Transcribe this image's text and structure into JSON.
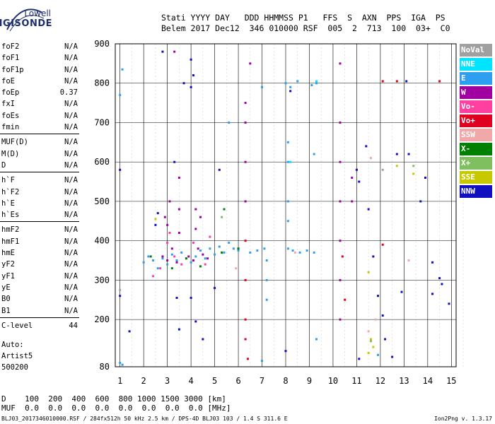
{
  "logo": {
    "line1": "Lowell",
    "line2": "DIGISONDE"
  },
  "header": {
    "line1": "Stati YYYY DAY   DDD HHMMSS P1   FFS  S  AXN  PPS  IGA  PS",
    "line2": "Belem 2017 Dec12  346 010000 RSF  005  2  713  100  03+  C0"
  },
  "params": [
    {
      "name": "foF2",
      "value": "N/A"
    },
    {
      "name": "foF1",
      "value": "N/A"
    },
    {
      "name": "foF1p",
      "value": "N/A"
    },
    {
      "name": "foE",
      "value": "N/A"
    },
    {
      "name": "foEp",
      "value": "0.37"
    },
    {
      "name": "fxI",
      "value": "N/A"
    },
    {
      "name": "foEs",
      "value": "N/A"
    },
    {
      "name": "fmin",
      "value": "N/A"
    },
    {
      "name": "MUF(D)",
      "value": "N/A",
      "sep_before": true
    },
    {
      "name": "M(D)",
      "value": "N/A"
    },
    {
      "name": "D",
      "value": "N/A"
    },
    {
      "name": "h`F",
      "value": "N/A",
      "sep_before": true
    },
    {
      "name": "h`F2",
      "value": "N/A"
    },
    {
      "name": "h`E",
      "value": "N/A"
    },
    {
      "name": "h`Es",
      "value": "N/A"
    },
    {
      "name": "hmF2",
      "value": "N/A",
      "sep_before": true
    },
    {
      "name": "hmF1",
      "value": "N/A"
    },
    {
      "name": "hmE",
      "value": "N/A"
    },
    {
      "name": "yF2",
      "value": "N/A"
    },
    {
      "name": "yF1",
      "value": "N/A"
    },
    {
      "name": "yE",
      "value": "N/A"
    },
    {
      "name": "B0",
      "value": "N/A"
    },
    {
      "name": "B1",
      "value": "N/A"
    },
    {
      "name": "C-level",
      "value": "44",
      "sep_before": true
    }
  ],
  "auto": {
    "line1": "Auto:",
    "line2": "Artist5",
    "line3": "500200"
  },
  "scale": {
    "d_line": "D    100  200  400  600  800 1000 1500 3000 [km]",
    "muf_line": "MUF  0.0  0.0  0.0  0.0  0.0  0.0  0.0  0.0 [MHz]"
  },
  "footer": {
    "left": "BLJ03_2017346010000.RSF / 284fx512h 50 kHz 2.5 km / DPS-4D BLJ03 103 / 1.4 S 311.6 E",
    "right": "Ion2Png v. 1.3.17"
  },
  "legend": [
    {
      "label": "NoVal",
      "color": "#a0a0a0"
    },
    {
      "label": "NNE",
      "color": "#00e5ff"
    },
    {
      "label": "E",
      "color": "#2e9ef0"
    },
    {
      "label": "W",
      "color": "#a000a0"
    },
    {
      "label": "Vo-",
      "color": "#ff40a0"
    },
    {
      "label": "Vo+",
      "color": "#e00020"
    },
    {
      "label": "SSW",
      "color": "#f0a8a8"
    },
    {
      "label": "X-",
      "color": "#008000"
    },
    {
      "label": "X+",
      "color": "#7fbf5f"
    },
    {
      "label": "SSE",
      "color": "#c8c800"
    },
    {
      "label": "NNW",
      "color": "#1010c0"
    }
  ],
  "chart_data": {
    "type": "scatter",
    "xlim": [
      0.8,
      15.2
    ],
    "ylim": [
      80,
      900
    ],
    "x_ticks": [
      1,
      2,
      3,
      4,
      5,
      6,
      7,
      8,
      9,
      10,
      11,
      12,
      13,
      14,
      15
    ],
    "y_ticks": [
      80,
      200,
      300,
      400,
      500,
      600,
      700,
      800,
      900
    ],
    "grid": true,
    "series": [
      {
        "color": "#2e9ef0",
        "points": [
          [
            2.0,
            345
          ],
          [
            2.2,
            360
          ],
          [
            2.4,
            350
          ],
          [
            2.6,
            330
          ],
          [
            2.8,
            355
          ],
          [
            3.0,
            340
          ],
          [
            3.2,
            365
          ],
          [
            3.4,
            350
          ],
          [
            3.6,
            370
          ],
          [
            3.8,
            355
          ],
          [
            4.0,
            345
          ],
          [
            4.2,
            360
          ],
          [
            4.4,
            375
          ],
          [
            4.6,
            355
          ],
          [
            4.8,
            380
          ],
          [
            5.0,
            365
          ],
          [
            5.2,
            385
          ],
          [
            5.4,
            370
          ],
          [
            5.6,
            395
          ],
          [
            5.8,
            380
          ],
          [
            6.0,
            375
          ],
          [
            6.5,
            370
          ],
          [
            6.8,
            375
          ],
          [
            7.1,
            380
          ],
          [
            7.2,
            350
          ],
          [
            7.2,
            300
          ],
          [
            7.2,
            250
          ],
          [
            8.1,
            380
          ],
          [
            8.3,
            375
          ],
          [
            8.6,
            370
          ],
          [
            8.9,
            375
          ],
          [
            9.1,
            795
          ],
          [
            9.3,
            800
          ],
          [
            9.2,
            370
          ],
          [
            8.0,
            800
          ],
          [
            8.2,
            790
          ],
          [
            8.5,
            805
          ],
          [
            8.1,
            600
          ],
          [
            8.1,
            500
          ],
          [
            8.1,
            450
          ],
          [
            8.1,
            650
          ],
          [
            1.0,
            770
          ],
          [
            1.1,
            835
          ],
          [
            7.0,
            790
          ],
          [
            5.6,
            700
          ],
          [
            1.0,
            90
          ],
          [
            1.1,
            85
          ],
          [
            9.3,
            150
          ],
          [
            9.2,
            620
          ],
          [
            11.9,
            110
          ],
          [
            7.0,
            95
          ]
        ]
      },
      {
        "color": "#a000a0",
        "points": [
          [
            2.8,
            360
          ],
          [
            3.0,
            350
          ],
          [
            3.2,
            380
          ],
          [
            3.4,
            345
          ],
          [
            3.9,
            360
          ],
          [
            4.1,
            350
          ],
          [
            4.3,
            380
          ],
          [
            4.5,
            365
          ],
          [
            4.7,
            355
          ],
          [
            2.9,
            460
          ],
          [
            3.0,
            440
          ],
          [
            3.1,
            500
          ],
          [
            3.5,
            480
          ],
          [
            3.5,
            560
          ],
          [
            3.5,
            420
          ],
          [
            4.2,
            480
          ],
          [
            4.2,
            430
          ],
          [
            4.4,
            460
          ],
          [
            6.3,
            750
          ],
          [
            6.3,
            700
          ],
          [
            6.3,
            600
          ],
          [
            6.5,
            850
          ],
          [
            10.3,
            850
          ],
          [
            10.3,
            700
          ],
          [
            10.3,
            600
          ],
          [
            10.3,
            500
          ],
          [
            10.3,
            400
          ],
          [
            10.3,
            300
          ],
          [
            10.3,
            200
          ],
          [
            10.8,
            500
          ],
          [
            10.8,
            560
          ],
          [
            3.3,
            880
          ],
          [
            6.3,
            500
          ]
        ]
      },
      {
        "color": "#ff40a0",
        "points": [
          [
            2.7,
            330
          ],
          [
            3.0,
            395
          ],
          [
            3.3,
            360
          ],
          [
            3.6,
            340
          ],
          [
            4.1,
            395
          ],
          [
            4.6,
            340
          ],
          [
            2.4,
            310
          ],
          [
            3.1,
            420
          ],
          [
            4.8,
            410
          ]
        ]
      },
      {
        "color": "#e00020",
        "points": [
          [
            6.3,
            400
          ],
          [
            6.3,
            300
          ],
          [
            6.3,
            200
          ],
          [
            6.3,
            150
          ],
          [
            6.4,
            100
          ],
          [
            10.4,
            360
          ],
          [
            10.5,
            250
          ],
          [
            12.1,
            390
          ],
          [
            12.7,
            805
          ],
          [
            14.5,
            805
          ],
          [
            12.1,
            805
          ]
        ]
      },
      {
        "color": "#1010c0",
        "points": [
          [
            1.0,
            580
          ],
          [
            1.0,
            260
          ],
          [
            1.4,
            170
          ],
          [
            2.8,
            880
          ],
          [
            4.0,
            860
          ],
          [
            4.1,
            820
          ],
          [
            4.0,
            790
          ],
          [
            3.7,
            800
          ],
          [
            3.3,
            600
          ],
          [
            2.6,
            470
          ],
          [
            2.5,
            440
          ],
          [
            3.4,
            255
          ],
          [
            4.0,
            255
          ],
          [
            3.5,
            175
          ],
          [
            4.2,
            195
          ],
          [
            4.5,
            150
          ],
          [
            5.0,
            280
          ],
          [
            5.2,
            580
          ],
          [
            6.0,
            380
          ],
          [
            8.0,
            120
          ],
          [
            11.0,
            580
          ],
          [
            11.1,
            550
          ],
          [
            11.5,
            480
          ],
          [
            11.4,
            640
          ],
          [
            11.7,
            360
          ],
          [
            11.9,
            260
          ],
          [
            12.1,
            210
          ],
          [
            12.2,
            150
          ],
          [
            12.5,
            105
          ],
          [
            12.7,
            620
          ],
          [
            12.9,
            270
          ],
          [
            13.2,
            620
          ],
          [
            13.7,
            500
          ],
          [
            13.9,
            560
          ],
          [
            14.2,
            345
          ],
          [
            14.2,
            265
          ],
          [
            14.5,
            305
          ],
          [
            14.6,
            290
          ],
          [
            14.9,
            240
          ],
          [
            11.1,
            100
          ],
          [
            8.2,
            780
          ],
          [
            13.1,
            805
          ]
        ]
      },
      {
        "color": "#008000",
        "points": [
          [
            2.3,
            360
          ],
          [
            3.2,
            330
          ],
          [
            3.8,
            355
          ],
          [
            4.4,
            335
          ],
          [
            5.3,
            370
          ],
          [
            6.0,
            380
          ],
          [
            5.4,
            480
          ]
        ]
      },
      {
        "color": "#c8c800",
        "points": [
          [
            11.5,
            320
          ],
          [
            11.6,
            150
          ],
          [
            11.7,
            130
          ],
          [
            11.5,
            115
          ],
          [
            12.7,
            590
          ],
          [
            13.4,
            570
          ],
          [
            2.5,
            455
          ]
        ]
      },
      {
        "color": "#7fbf5f",
        "points": [
          [
            11.6,
            145
          ],
          [
            5.3,
            460
          ],
          [
            13.4,
            590
          ]
        ]
      },
      {
        "color": "#f0a8a8",
        "points": [
          [
            11.6,
            610
          ],
          [
            11.8,
            200
          ],
          [
            11.5,
            170
          ],
          [
            5.9,
            330
          ],
          [
            8.4,
            370
          ],
          [
            13.2,
            350
          ]
        ]
      },
      {
        "color": "#00e5ff",
        "points": [
          [
            9.3,
            805
          ],
          [
            8.2,
            600
          ]
        ]
      },
      {
        "color": "#a0a0a0",
        "points": [
          [
            1.0,
            275
          ],
          [
            12.1,
            580
          ]
        ]
      }
    ]
  }
}
